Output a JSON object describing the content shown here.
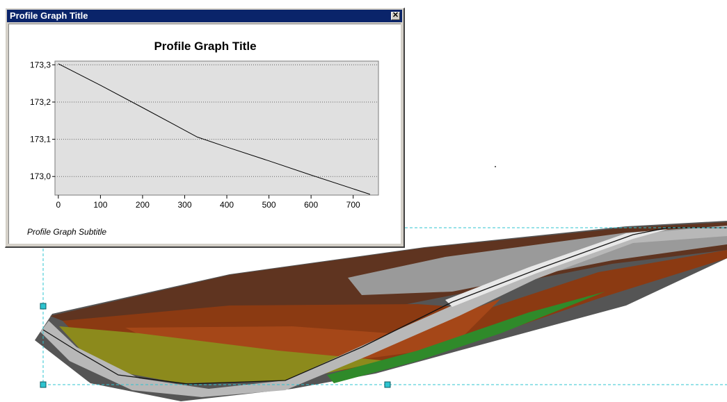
{
  "window": {
    "title": "Profile Graph Title",
    "close_symbol": "✕"
  },
  "chart_data": {
    "type": "line",
    "title": "Profile Graph Title",
    "subtitle": "Profile Graph Subtitle",
    "xlabel": "",
    "ylabel": "",
    "xlim": [
      -8,
      760
    ],
    "ylim": [
      172.95,
      173.31
    ],
    "xticks": [
      "0",
      "100",
      "200",
      "300",
      "400",
      "500",
      "600",
      "700"
    ],
    "xtick_values": [
      0,
      100,
      200,
      300,
      400,
      500,
      600,
      700
    ],
    "yticks": [
      "173,0",
      "173,1",
      "173,2",
      "173,3"
    ],
    "ytick_values": [
      173.0,
      173.1,
      173.2,
      173.3
    ],
    "grid": "horizontal-dotted",
    "plot_background": "#e0e0e0",
    "series": [
      {
        "x": [
          0,
          100,
          200,
          330,
          400,
          500,
          600,
          740
        ],
        "y": [
          173.303,
          173.245,
          173.185,
          173.106,
          173.079,
          173.042,
          173.004,
          172.952
        ]
      }
    ]
  },
  "map": {
    "colors": {
      "selection": "#2ec4d0",
      "brown_dark": "#5a2f1c",
      "orange": "#993300",
      "olive": "#a0a022",
      "green": "#2a8a2a",
      "gray": "#9a9a9a"
    }
  }
}
